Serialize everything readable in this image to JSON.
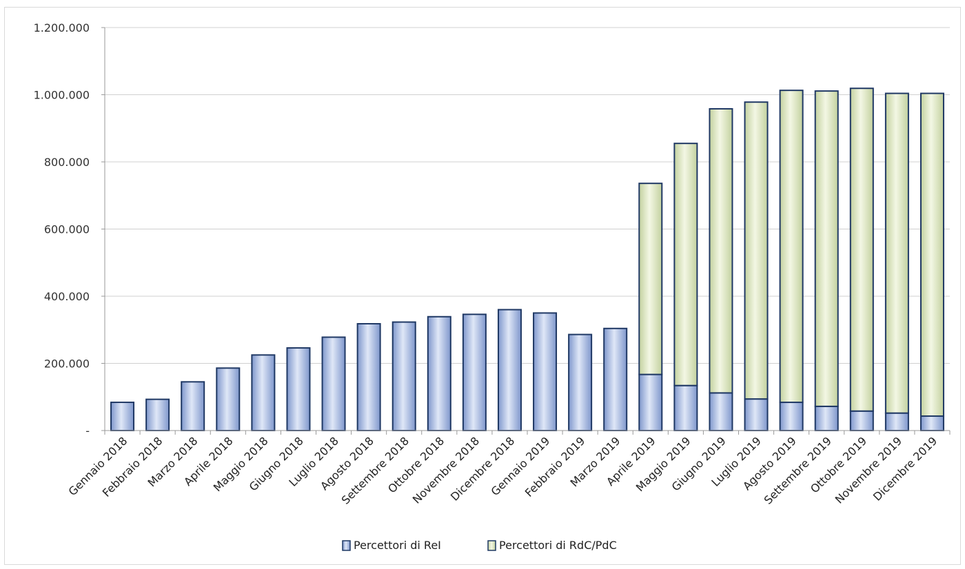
{
  "chart_data": {
    "type": "bar",
    "stacked": true,
    "categories": [
      "Gennaio 2018",
      "Febbraio 2018",
      "Marzo 2018",
      "Aprile 2018",
      "Maggio 2018",
      "Giugno 2018",
      "Luglio 2018",
      "Agosto 2018",
      "Settembre 2018",
      "Ottobre 2018",
      "Novembre 2018",
      "Dicembre 2018",
      "Gennaio 2019",
      "Febbraio 2019",
      "Marzo 2019",
      "Aprile 2019",
      "Maggio 2019",
      "Giugno 2019",
      "Luglio 2019",
      "Agosto 2019",
      "Settembre 2019",
      "Ottobre 2019",
      "Novembre 2019",
      "Dicembre 2019"
    ],
    "series": [
      {
        "name": "Percettori di ReI",
        "color": "#9db3de",
        "values": [
          84000,
          93000,
          145000,
          186000,
          225000,
          246000,
          278000,
          318000,
          323000,
          339000,
          346000,
          360000,
          350000,
          286000,
          304000,
          167000,
          134000,
          112000,
          94000,
          84000,
          72000,
          58000,
          52000,
          43000
        ]
      },
      {
        "name": "Percettori di RdC/PdC",
        "color": "#d9e3bd",
        "values": [
          0,
          0,
          0,
          0,
          0,
          0,
          0,
          0,
          0,
          0,
          0,
          0,
          0,
          0,
          0,
          569000,
          721000,
          846000,
          884000,
          929000,
          939000,
          961000,
          952000,
          961000
        ]
      }
    ],
    "yticks": [
      "-",
      "200.000",
      "400.000",
      "600.000",
      "800.000",
      "1.000.000",
      "1.200.000"
    ],
    "ylim": [
      0,
      1200000
    ],
    "grid": true,
    "legend_position": "bottom",
    "title": "",
    "xlabel": "",
    "ylabel": ""
  }
}
